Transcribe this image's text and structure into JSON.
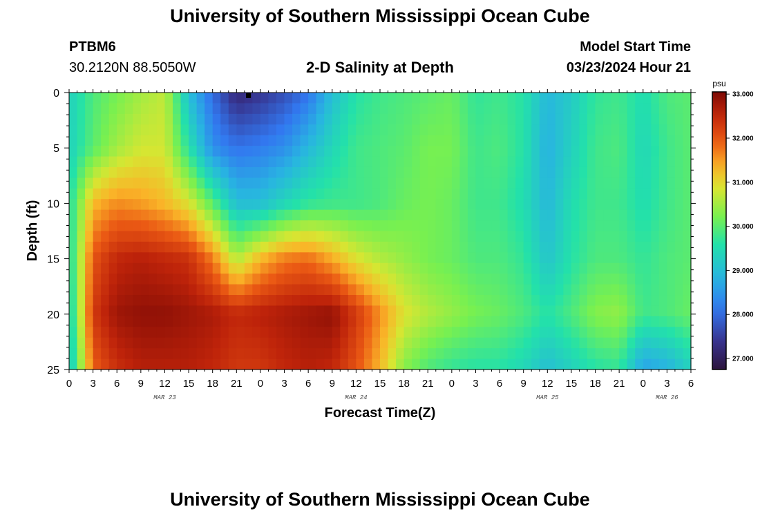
{
  "header": {
    "title": "University of Southern Mississippi Ocean Cube",
    "station_id": "PTBM6",
    "station_coords": "30.2120N  88.5050W",
    "subtitle": "2-D Salinity at Depth",
    "start_label": "Model Start Time",
    "start_value": "03/23/2024 Hour 21"
  },
  "footer": {
    "title": "University of Southern Mississippi Ocean Cube"
  },
  "chart_data": {
    "type": "heatmap",
    "title": "2-D Salinity at Depth",
    "xlabel": "Forecast Time(Z)",
    "ylabel": "Depth (ft)",
    "x_tick_labels": [
      "0",
      "3",
      "6",
      "9",
      "12",
      "15",
      "18",
      "21",
      "0",
      "3",
      "6",
      "9",
      "12",
      "15",
      "18",
      "21",
      "0",
      "3",
      "6",
      "9",
      "12",
      "15",
      "18",
      "21",
      "0",
      "3",
      "6"
    ],
    "date_labels": [
      {
        "label": "MAR 23",
        "tick_index": 4
      },
      {
        "label": "MAR 24",
        "tick_index": 12
      },
      {
        "label": "MAR 25",
        "tick_index": 20
      },
      {
        "label": "MAR 26",
        "tick_index": 25
      }
    ],
    "x_range_hours": [
      0,
      78
    ],
    "y_ticks": [
      0,
      5,
      10,
      15,
      20,
      25
    ],
    "ylim": [
      0,
      25
    ],
    "colorbar": {
      "unit": "psu",
      "min": 26.75,
      "max": 33.05,
      "ticks": [
        "27.000",
        "28.000",
        "29.000",
        "30.000",
        "31.000",
        "32.000",
        "33.000"
      ],
      "tick_values": [
        27,
        28,
        29,
        30,
        31,
        32,
        33
      ]
    },
    "marker_hour": 22.5,
    "salinity_hours": [
      0,
      3,
      6,
      9,
      12,
      15,
      18,
      21,
      24,
      27,
      30,
      33,
      36,
      39,
      42,
      45,
      48,
      51,
      54,
      57,
      60,
      63,
      66,
      69,
      72,
      75,
      78
    ],
    "salinity_depths_ft": [
      0,
      5,
      10,
      15,
      20,
      25
    ],
    "salinity_psu": [
      [
        29.3,
        29.9,
        30.2,
        30.5,
        30.7,
        29.0,
        28.0,
        27.2,
        27.4,
        27.7,
        28.1,
        29.0,
        29.6,
        29.8,
        29.9,
        30.0,
        30.1,
        29.7,
        29.8,
        29.6,
        28.9,
        29.2,
        29.7,
        29.8,
        29.5,
        29.9,
        30.0
      ],
      [
        29.3,
        30.0,
        30.5,
        30.8,
        30.8,
        29.6,
        28.4,
        28.1,
        28.2,
        28.4,
        28.9,
        29.4,
        29.8,
        29.9,
        30.0,
        30.2,
        30.2,
        29.8,
        29.9,
        29.6,
        28.8,
        29.3,
        29.8,
        29.9,
        29.4,
        29.8,
        30.0
      ],
      [
        29.5,
        31.3,
        31.6,
        31.5,
        31.3,
        30.9,
        30.0,
        29.0,
        29.0,
        29.4,
        29.7,
        29.8,
        29.8,
        29.9,
        30.1,
        30.2,
        30.1,
        29.8,
        29.8,
        29.5,
        28.9,
        29.5,
        29.8,
        29.8,
        29.5,
        29.8,
        30.0
      ],
      [
        29.4,
        32.0,
        32.5,
        32.6,
        32.5,
        32.4,
        31.7,
        30.6,
        31.3,
        31.7,
        31.8,
        31.4,
        30.9,
        30.6,
        30.4,
        30.2,
        30.1,
        29.9,
        29.9,
        29.7,
        29.1,
        29.6,
        29.9,
        29.9,
        29.7,
        29.9,
        30.0
      ],
      [
        29.2,
        32.3,
        32.8,
        32.9,
        32.9,
        32.8,
        32.7,
        32.5,
        32.6,
        32.7,
        32.8,
        32.9,
        32.3,
        31.6,
        30.9,
        30.6,
        30.4,
        30.2,
        30.1,
        29.9,
        29.6,
        29.9,
        30.3,
        30.4,
        29.8,
        29.9,
        30.1
      ],
      [
        29.0,
        31.9,
        32.4,
        32.6,
        32.6,
        32.6,
        32.5,
        32.3,
        32.3,
        32.5,
        32.6,
        32.5,
        32.0,
        31.3,
        30.3,
        29.9,
        29.7,
        29.6,
        29.6,
        29.4,
        29.0,
        29.3,
        29.6,
        29.7,
        28.6,
        28.8,
        29.3
      ]
    ]
  }
}
